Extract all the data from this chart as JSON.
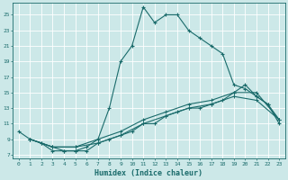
{
  "xlabel": "Humidex (Indice chaleur)",
  "bg_color": "#cce8e8",
  "line_color": "#1a6b6b",
  "grid_color": "#b0d4d4",
  "xlim": [
    -0.5,
    23.5
  ],
  "ylim": [
    6.5,
    26.5
  ],
  "yticks": [
    7,
    9,
    11,
    13,
    15,
    17,
    19,
    21,
    23,
    25
  ],
  "xticks": [
    0,
    1,
    2,
    3,
    4,
    5,
    6,
    7,
    8,
    9,
    10,
    11,
    12,
    13,
    14,
    15,
    16,
    17,
    18,
    19,
    20,
    21,
    22,
    23
  ],
  "curve1_x": [
    0,
    1,
    2,
    3,
    4,
    5,
    6,
    7,
    8,
    9,
    10,
    11,
    12,
    13,
    14,
    15,
    16,
    17,
    18,
    19,
    20,
    21,
    22,
    23
  ],
  "curve1_y": [
    10,
    9,
    8.5,
    8,
    7.5,
    7.5,
    8,
    9,
    13,
    19,
    21,
    26,
    24,
    25,
    25,
    23,
    22,
    21,
    20,
    16,
    15.5,
    14.5,
    13.5,
    11
  ],
  "curve2_x": [
    1,
    2,
    3,
    4,
    5,
    6,
    7,
    8,
    9,
    10,
    11,
    12,
    13,
    14,
    15,
    16,
    17,
    18,
    19,
    20,
    21,
    22,
    23
  ],
  "curve2_y": [
    9,
    8.5,
    7.5,
    7.5,
    7.5,
    7.5,
    8.5,
    9,
    9.5,
    10,
    11,
    11,
    12,
    12.5,
    13,
    13,
    13.5,
    14,
    15,
    16,
    14.5,
    13.5,
    11.5
  ],
  "curve3_x": [
    1,
    3,
    5,
    7,
    9,
    11,
    13,
    15,
    17,
    19,
    21,
    23
  ],
  "curve3_y": [
    9,
    8,
    8,
    9,
    10,
    11.5,
    12.5,
    13.5,
    14,
    15,
    15,
    11.5
  ],
  "curve4_x": [
    1,
    3,
    5,
    7,
    9,
    11,
    13,
    15,
    17,
    19,
    21,
    23
  ],
  "curve4_y": [
    9,
    8,
    8,
    8.5,
    9.5,
    11,
    12,
    13,
    13.5,
    14.5,
    14,
    11.5
  ]
}
